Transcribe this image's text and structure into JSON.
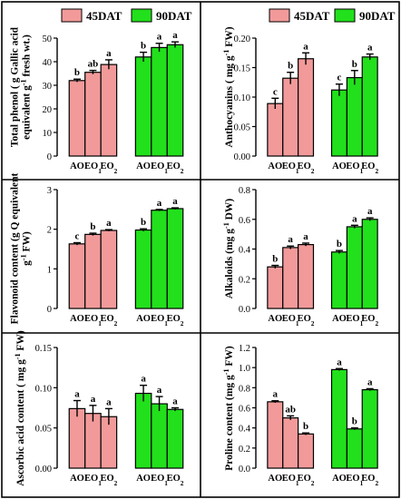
{
  "colors": {
    "s45": "#F29A9A",
    "s90": "#22E01C",
    "axis": "#000000",
    "frame": "#000000"
  },
  "legend_labels": [
    "45DAT",
    "90DAT"
  ],
  "chart_data": [
    {
      "type": "bar",
      "ylabel_lines": [
        "Total phenol ( g Gallic acid",
        "equivalent g-1 fresh wt.)"
      ],
      "ylim": [
        0,
        50
      ],
      "yticks": [
        "0",
        "10",
        "20",
        "30",
        "40",
        "50"
      ],
      "categories": [
        "AO",
        "EO1",
        "EO2"
      ],
      "series": [
        {
          "name": "45DAT",
          "values": [
            32.0,
            35.5,
            38.8
          ],
          "errors": [
            0.6,
            0.8,
            2.0
          ],
          "letters": [
            "b",
            "ab",
            "a"
          ]
        },
        {
          "name": "90DAT",
          "values": [
            42.0,
            46.0,
            47.2
          ],
          "errors": [
            2.0,
            1.8,
            1.2
          ],
          "letters": [
            "b",
            "a",
            "a"
          ]
        }
      ]
    },
    {
      "type": "bar",
      "ylabel_lines": [
        "Anthocyanins ( mg g-1 FW)"
      ],
      "ylim": [
        0,
        0.2
      ],
      "yticks": [
        "0.00",
        "0.05",
        "0.10",
        "0.15",
        "0.20"
      ],
      "categories": [
        "AO",
        "EO1",
        "EO2"
      ],
      "series": [
        {
          "name": "45DAT",
          "values": [
            0.089,
            0.132,
            0.165
          ],
          "errors": [
            0.009,
            0.01,
            0.01
          ],
          "letters": [
            "c",
            "b",
            "a"
          ]
        },
        {
          "name": "90DAT",
          "values": [
            0.112,
            0.133,
            0.168
          ],
          "errors": [
            0.01,
            0.012,
            0.005
          ],
          "letters": [
            "c",
            "b",
            "a"
          ]
        }
      ]
    },
    {
      "type": "bar",
      "ylabel_lines": [
        "Flavonoid content (g Q equivalent",
        "g-1 FW)"
      ],
      "ylim": [
        0,
        3
      ],
      "yticks": [
        "0",
        "1",
        "2",
        "3"
      ],
      "categories": [
        "AO",
        "EO1",
        "EO2"
      ],
      "series": [
        {
          "name": "45DAT",
          "values": [
            1.63,
            1.87,
            1.97
          ],
          "errors": [
            0.03,
            0.03,
            0.02
          ],
          "letters": [
            "c",
            "b",
            "a"
          ]
        },
        {
          "name": "90DAT",
          "values": [
            1.98,
            2.48,
            2.52
          ],
          "errors": [
            0.03,
            0.02,
            0.02
          ],
          "letters": [
            "b",
            "a",
            "a"
          ]
        }
      ]
    },
    {
      "type": "bar",
      "ylabel_lines": [
        "Alkaloids (mg g-1 DW)"
      ],
      "ylim": [
        0,
        0.8
      ],
      "yticks": [
        "0.0",
        "0.2",
        "0.4",
        "0.6",
        "0.8"
      ],
      "categories": [
        "AO",
        "EO1",
        "EO2"
      ],
      "series": [
        {
          "name": "45DAT",
          "values": [
            0.28,
            0.41,
            0.43
          ],
          "errors": [
            0.01,
            0.01,
            0.01
          ],
          "letters": [
            "b",
            "a",
            "a"
          ]
        },
        {
          "name": "90DAT",
          "values": [
            0.38,
            0.55,
            0.6
          ],
          "errors": [
            0.01,
            0.01,
            0.01
          ],
          "letters": [
            "b",
            "a",
            "a"
          ]
        }
      ]
    },
    {
      "type": "bar",
      "ylabel_lines": [
        "Ascorbic acid content ( mg g-1 FW)"
      ],
      "ylim": [
        0,
        0.15
      ],
      "yticks": [
        "0.00",
        "0.05",
        "0.10",
        "0.15"
      ],
      "categories": [
        "AO",
        "EO1",
        "EO2"
      ],
      "series": [
        {
          "name": "45DAT",
          "values": [
            0.074,
            0.068,
            0.064
          ],
          "errors": [
            0.01,
            0.01,
            0.01
          ],
          "letters": [
            "a",
            "a",
            "a"
          ]
        },
        {
          "name": "90DAT",
          "values": [
            0.093,
            0.08,
            0.073
          ],
          "errors": [
            0.01,
            0.009,
            0.002
          ],
          "letters": [
            "a",
            "a",
            "a"
          ]
        }
      ]
    },
    {
      "type": "bar",
      "ylabel_lines": [
        "Proline content (mg g-1 FW)"
      ],
      "ylim": [
        0,
        1.2
      ],
      "yticks": [
        "0.0",
        "0.2",
        "0.4",
        "0.6",
        "0.8",
        "1.0",
        "1.2"
      ],
      "categories": [
        "AO",
        "EO1",
        "EO2"
      ],
      "series": [
        {
          "name": "45DAT",
          "values": [
            0.66,
            0.5,
            0.34
          ],
          "errors": [
            0.01,
            0.02,
            0.01
          ],
          "letters": [
            "a",
            "ab",
            "b"
          ]
        },
        {
          "name": "90DAT",
          "values": [
            0.98,
            0.39,
            0.78
          ],
          "errors": [
            0.01,
            0.01,
            0.01
          ],
          "letters": [
            "a",
            "b",
            "a"
          ]
        }
      ]
    }
  ]
}
